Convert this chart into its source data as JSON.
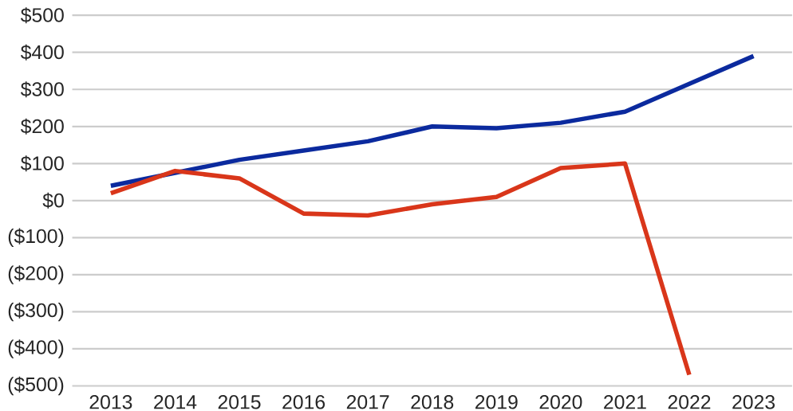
{
  "chart_data": {
    "type": "line",
    "categories": [
      "2013",
      "2014",
      "2015",
      "2016",
      "2017",
      "2018",
      "2019",
      "2020",
      "2021",
      "2022",
      "2023"
    ],
    "series": [
      {
        "color": "#0b2a9e",
        "values": [
          40,
          75,
          110,
          135,
          160,
          200,
          195,
          210,
          240,
          315,
          390
        ]
      },
      {
        "color": "#d9361a",
        "values": [
          20,
          80,
          60,
          -35,
          -40,
          -10,
          10,
          88,
          100,
          -470,
          null
        ]
      }
    ],
    "ylim": [
      -500,
      500
    ],
    "yticks": [
      {
        "value": -500,
        "label": "($500)"
      },
      {
        "value": -400,
        "label": "($400)"
      },
      {
        "value": -300,
        "label": "($300)"
      },
      {
        "value": -200,
        "label": "($200)"
      },
      {
        "value": -100,
        "label": "($100)"
      },
      {
        "value": 0,
        "label": "$0"
      },
      {
        "value": 100,
        "label": "$100"
      },
      {
        "value": 200,
        "label": "$200"
      },
      {
        "value": 300,
        "label": "$300"
      },
      {
        "value": 400,
        "label": "$400"
      },
      {
        "value": 500,
        "label": "$500"
      }
    ],
    "grid": "y",
    "legend": false,
    "marker": "none",
    "line_style": "solid"
  }
}
